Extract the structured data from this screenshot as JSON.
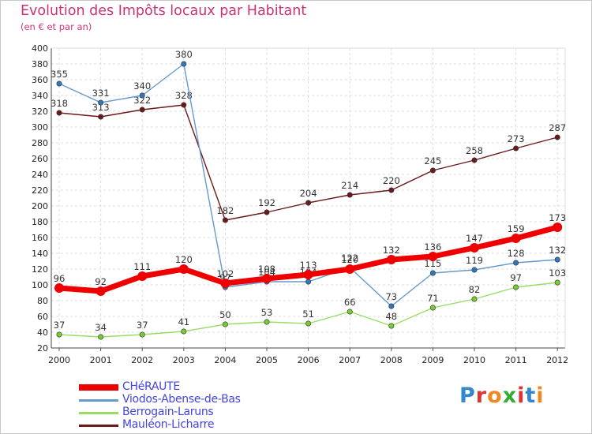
{
  "title": "Evolution des Impôts locaux par Habitant",
  "subtitle": "(en € et par an)",
  "logo": {
    "text": "Proxiti",
    "colors": [
      "#3388cc",
      "#dd3333",
      "#ee8822",
      "#33aa33",
      "#dd3333",
      "#3388cc",
      "#ee8822"
    ]
  },
  "chart_data": {
    "type": "line",
    "x": [
      2000,
      2001,
      2002,
      2003,
      2004,
      2005,
      2006,
      2007,
      2008,
      2009,
      2010,
      2011,
      2012
    ],
    "ylim": [
      20,
      400
    ],
    "yticks": [
      20,
      40,
      60,
      80,
      100,
      120,
      140,
      160,
      180,
      200,
      220,
      240,
      260,
      280,
      300,
      320,
      340,
      360,
      380,
      400
    ],
    "grid": true,
    "legend_position": "bottom-left",
    "series": [
      {
        "name": "Mauléon-Licharre",
        "color": "#6b1a1a",
        "dot": "#6b1a1a",
        "values": [
          318,
          313,
          322,
          328,
          182,
          192,
          204,
          214,
          220,
          245,
          258,
          273,
          287
        ]
      },
      {
        "name": "Berrogain-Laruns",
        "color": "#99dd66",
        "dot": "#77cc33",
        "values": [
          37,
          34,
          37,
          41,
          50,
          53,
          51,
          66,
          48,
          71,
          82,
          97,
          103
        ]
      },
      {
        "name": "Viodos-Abense-de-Bas",
        "color": "#6699cc",
        "dot": "#3377bb",
        "values": [
          355,
          331,
          340,
          380,
          97,
          104,
          104,
          122,
          73,
          115,
          119,
          128,
          132
        ]
      },
      {
        "name": "CHéRAUTE",
        "color": "#ee0000",
        "dot": "#ee0000",
        "values": [
          96,
          92,
          111,
          120,
          102,
          108,
          113,
          120,
          132,
          136,
          147,
          159,
          173
        ]
      }
    ],
    "legend": [
      "CHéRAUTE",
      "Viodos-Abense-de-Bas",
      "Berrogain-Laruns",
      "Mauléon-Licharre"
    ]
  }
}
